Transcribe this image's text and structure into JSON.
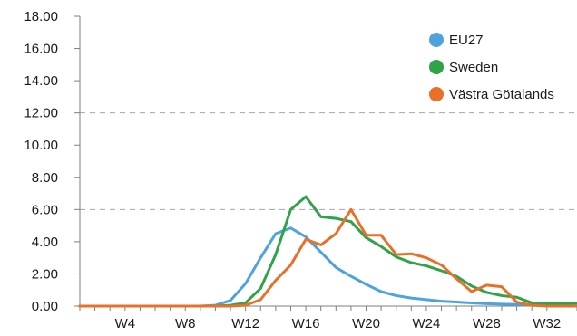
{
  "chart_data": {
    "type": "line",
    "title": "",
    "xlabel": "",
    "ylabel": "",
    "x": [
      1,
      2,
      3,
      4,
      5,
      6,
      7,
      8,
      9,
      10,
      11,
      12,
      13,
      14,
      15,
      16,
      17,
      18,
      19,
      20,
      21,
      22,
      23,
      24,
      25,
      26,
      27,
      28,
      29,
      30,
      31,
      32,
      33,
      34
    ],
    "xlim": [
      1,
      34
    ],
    "x_ticks": [
      4,
      8,
      12,
      16,
      20,
      24,
      28,
      32
    ],
    "x_tick_labels": [
      "W4",
      "W8",
      "W12",
      "W16",
      "W20",
      "W24",
      "W28",
      "W32"
    ],
    "ylim": [
      0,
      18
    ],
    "y_ticks": [
      0,
      2,
      4,
      6,
      8,
      10,
      12,
      14,
      16,
      18
    ],
    "y_tick_labels": [
      "0.00",
      "2.00",
      "4.00",
      "6.00",
      "8.00",
      "10.00",
      "12.00",
      "14.00",
      "16.00",
      "18.00"
    ],
    "dashed_gridlines_y": [
      6,
      12
    ],
    "legend_position": "top-right",
    "series": [
      {
        "name": "EU27",
        "color": "#4fa3dd",
        "values": [
          0,
          0,
          0,
          0,
          0,
          0,
          0,
          0,
          0,
          0.05,
          0.35,
          1.4,
          3.0,
          4.5,
          4.85,
          4.3,
          3.35,
          2.4,
          1.85,
          1.35,
          0.9,
          0.65,
          0.5,
          0.4,
          0.3,
          0.25,
          0.2,
          0.15,
          0.12,
          0.1,
          0.12,
          0.15,
          0.2,
          0.15
        ]
      },
      {
        "name": "Sweden",
        "color": "#2fa24a",
        "values": [
          0,
          0,
          0,
          0,
          0,
          0,
          0,
          0,
          0,
          0,
          0.05,
          0.2,
          1.1,
          3.2,
          6.0,
          6.8,
          5.55,
          5.45,
          5.25,
          4.25,
          3.7,
          3.05,
          2.7,
          2.5,
          2.2,
          1.85,
          1.25,
          0.85,
          0.65,
          0.55,
          0.2,
          0.15,
          0.15,
          0.2
        ]
      },
      {
        "name": "Västra Götalands",
        "color": "#e87028",
        "values": [
          0,
          0,
          0,
          0,
          0,
          0,
          0,
          0,
          0,
          0,
          0,
          0.05,
          0.4,
          1.6,
          2.55,
          4.15,
          3.8,
          4.5,
          6.0,
          4.4,
          4.4,
          3.2,
          3.25,
          3.0,
          2.55,
          1.7,
          0.9,
          1.3,
          1.2,
          0.25,
          0.05,
          0,
          0,
          0
        ]
      }
    ]
  }
}
